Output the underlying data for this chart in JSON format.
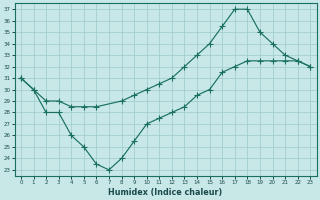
{
  "xlabel": "Humidex (Indice chaleur)",
  "bg_color": "#c8e8e8",
  "grid_color": "#a0cccc",
  "line_color": "#1a7060",
  "xlim": [
    -0.5,
    23.5
  ],
  "ylim": [
    22.5,
    37.5
  ],
  "yticks": [
    23,
    24,
    25,
    26,
    27,
    28,
    29,
    30,
    31,
    32,
    33,
    34,
    35,
    36,
    37
  ],
  "xticks": [
    0,
    1,
    2,
    3,
    4,
    5,
    6,
    7,
    8,
    9,
    10,
    11,
    12,
    13,
    14,
    15,
    16,
    17,
    18,
    19,
    20,
    21,
    22,
    23
  ],
  "upper_curve_x": [
    0,
    1,
    2,
    3,
    4,
    5,
    6,
    8,
    9,
    10,
    11,
    12,
    13,
    14,
    15,
    16,
    17,
    18,
    19,
    20,
    21,
    22,
    23
  ],
  "upper_curve_y": [
    31,
    30,
    29,
    29,
    28.5,
    28.5,
    28.5,
    29,
    29.5,
    30,
    30.5,
    31,
    32,
    33,
    34,
    35.5,
    37,
    37,
    35,
    34,
    33,
    32.5,
    32
  ],
  "lower_curve_x": [
    0,
    1,
    2,
    3,
    4,
    5,
    6,
    7,
    8,
    9,
    10,
    11,
    12,
    13,
    14,
    15,
    16,
    17,
    18,
    19,
    20,
    21,
    22,
    23
  ],
  "lower_curve_y": [
    31,
    30,
    28,
    28,
    26,
    25,
    23.5,
    23,
    24,
    25.5,
    27,
    27.5,
    28,
    28.5,
    29.5,
    30,
    31.5,
    32,
    32.5,
    32.5,
    32.5,
    32.5,
    32.5,
    32
  ]
}
